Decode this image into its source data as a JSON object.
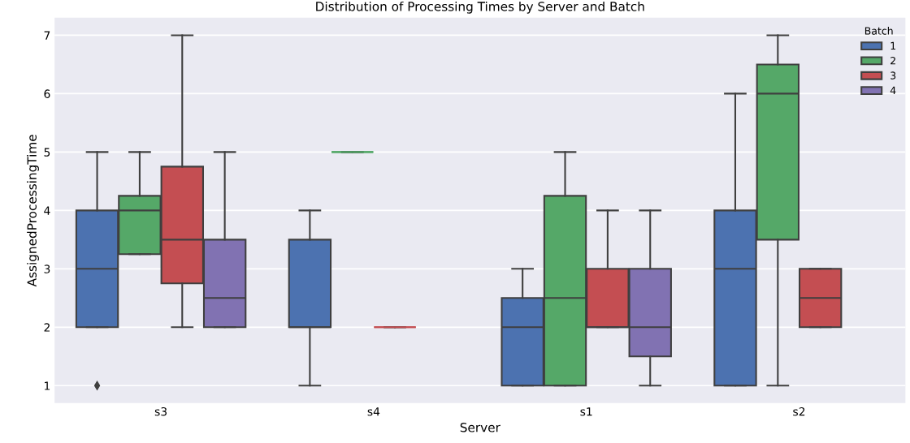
{
  "chart_data": {
    "type": "box",
    "title": "Distribution of Processing Times by Server and Batch",
    "xlabel": "Server",
    "ylabel": "AssignedProcessingTime",
    "legend_title": "Batch",
    "categories": [
      "s3",
      "s4",
      "s1",
      "s2"
    ],
    "series": [
      {
        "name": "1",
        "color": "#4c72b0",
        "boxes": [
          {
            "low": 2,
            "q1": 2,
            "median": 3,
            "q3": 4,
            "high": 5,
            "outliers": [
              1
            ]
          },
          {
            "low": 1,
            "q1": 2,
            "median": 2,
            "q3": 3.5,
            "high": 4
          },
          {
            "low": 1,
            "q1": 1,
            "median": 2,
            "q3": 2.5,
            "high": 3
          },
          {
            "low": 1,
            "q1": 1,
            "median": 3,
            "q3": 4,
            "high": 6
          }
        ]
      },
      {
        "name": "2",
        "color": "#55a868",
        "boxes": [
          {
            "low": 3.25,
            "q1": 3.25,
            "median": 4,
            "q3": 4.25,
            "high": 5
          },
          {
            "low": 5,
            "q1": 5,
            "median": 5,
            "q3": 5,
            "high": 5
          },
          {
            "low": 1,
            "q1": 1,
            "median": 2.5,
            "q3": 4.25,
            "high": 5
          },
          {
            "low": 1,
            "q1": 3.5,
            "median": 6,
            "q3": 6.5,
            "high": 7
          }
        ]
      },
      {
        "name": "3",
        "color": "#c44e52",
        "boxes": [
          {
            "low": 2,
            "q1": 2.75,
            "median": 3.5,
            "q3": 4.75,
            "high": 7
          },
          {
            "low": 2,
            "q1": 2,
            "median": 2,
            "q3": 2,
            "high": 2
          },
          {
            "low": 2,
            "q1": 2,
            "median": 2,
            "q3": 3,
            "high": 4
          },
          {
            "low": 2,
            "q1": 2,
            "median": 2.5,
            "q3": 3,
            "high": 3
          }
        ]
      },
      {
        "name": "4",
        "color": "#8172b2",
        "boxes": [
          {
            "low": 2,
            "q1": 2,
            "median": 2.5,
            "q3": 3.5,
            "high": 5
          },
          null,
          {
            "low": 1,
            "q1": 1.5,
            "median": 2,
            "q3": 3,
            "high": 4
          },
          null
        ]
      }
    ],
    "ylim": [
      0.7,
      7.3
    ],
    "yticks": [
      1,
      2,
      3,
      4,
      5,
      6,
      7
    ],
    "grid": "y",
    "legend": "top right",
    "marker": "diamond"
  }
}
